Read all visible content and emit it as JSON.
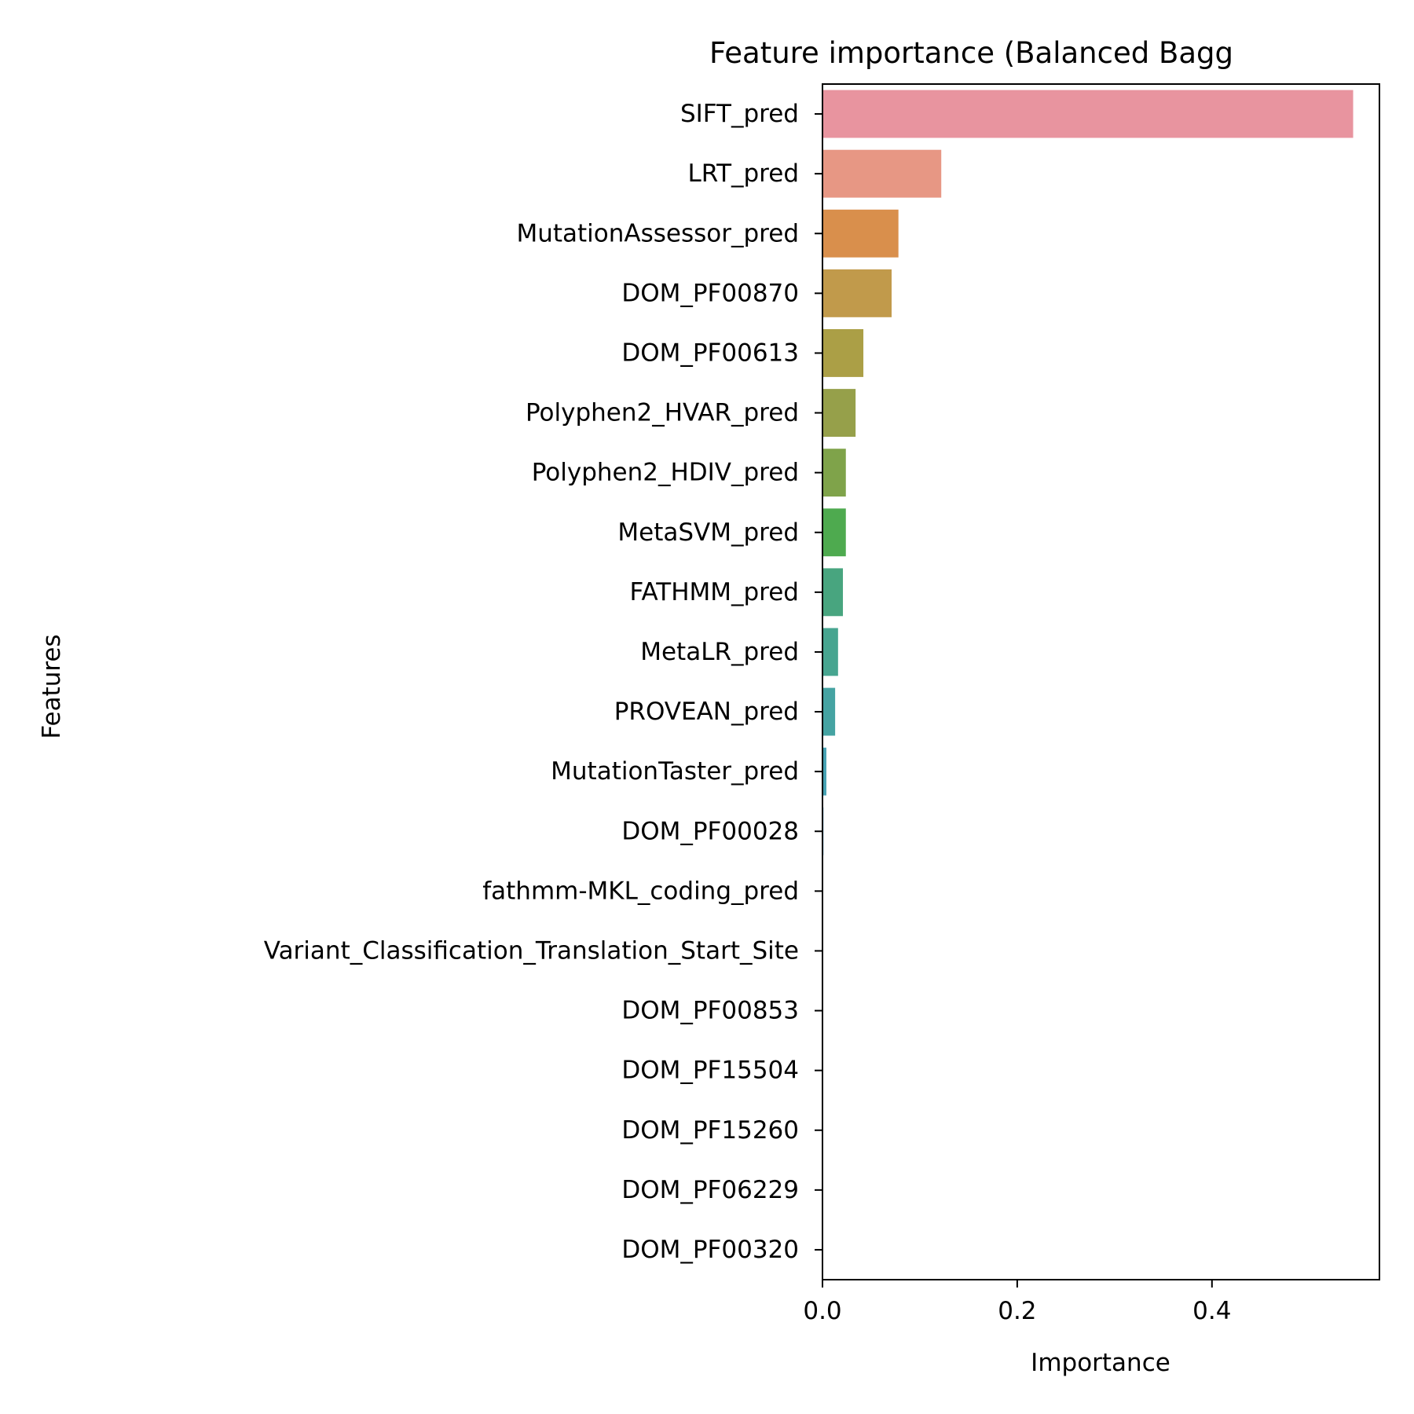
{
  "chart_data": {
    "type": "bar",
    "orientation": "horizontal",
    "title": "Feature importance (Balanced Bagg",
    "xlabel": "Importance",
    "ylabel": "Features",
    "xlim": [
      0,
      0.572
    ],
    "xticks": [
      0.0,
      0.2,
      0.4
    ],
    "xtick_labels": [
      "0.0",
      "0.2",
      "0.4"
    ],
    "grid": false,
    "categories": [
      "SIFT_pred",
      "LRT_pred",
      "MutationAssessor_pred",
      "DOM_PF00870",
      "DOM_PF00613",
      "Polyphen2_HVAR_pred",
      "Polyphen2_HDIV_pred",
      "MetaSVM_pred",
      "FATHMM_pred",
      "MetaLR_pred",
      "PROVEAN_pred",
      "MutationTaster_pred",
      "DOM_PF00028",
      "fathmm-MKL_coding_pred",
      "Variant_Classification_Translation_Start_Site",
      "DOM_PF00853",
      "DOM_PF15504",
      "DOM_PF15260",
      "DOM_PF06229",
      "DOM_PF00320"
    ],
    "values": [
      0.545,
      0.122,
      0.078,
      0.071,
      0.042,
      0.034,
      0.024,
      0.024,
      0.021,
      0.016,
      0.013,
      0.004,
      0.001,
      0.0,
      0.0,
      0.0,
      0.0,
      0.0,
      0.0,
      0.0
    ],
    "colors": [
      "#e8949f",
      "#e79784",
      "#d98f4c",
      "#c19a4b",
      "#ab9f46",
      "#96a04a",
      "#7fa34a",
      "#4eaa4f",
      "#48a57f",
      "#47a590",
      "#45a3a2",
      "#46a2b3",
      "#4f9fc7",
      "#6f93d8",
      "#9b87e0",
      "#b77ee0",
      "#cc76d6",
      "#de6dc6",
      "#e678ab",
      "#ea7f97"
    ]
  }
}
